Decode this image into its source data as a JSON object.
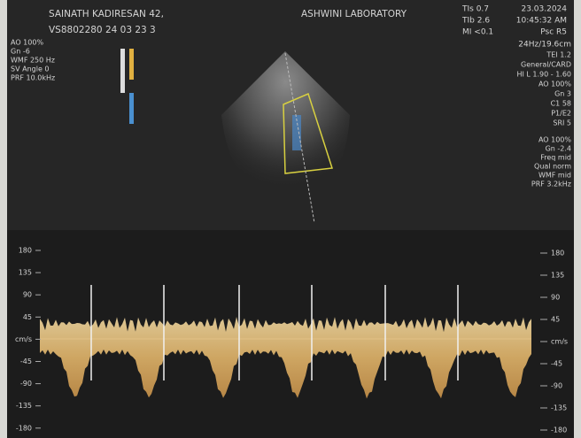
{
  "header": {
    "patient": "SAINATH KADIRESAN 42,",
    "id": "VS8802280 24 03 23 3",
    "lab": "ASHWINI LABORATORY",
    "tis": "TIs 0.7",
    "tib": "TIb 2.6",
    "mi": "MI <0.1",
    "date": "23.03.2024",
    "time": "10:45:32 AM",
    "probe": "Psc R5",
    "frame": "24Hz/19.6cm"
  },
  "left_params": [
    "AO 100%",
    "Gn -6",
    "WMF 250 Hz",
    "SV Angle 0",
    "PRF 10.0kHz"
  ],
  "right_params": [
    "TEI 1.2",
    "General/CARD",
    "HI L 1.90 - 1.60",
    "AO 100%",
    "Gn 3",
    "C1 58",
    "P1/E2",
    "SRI 5"
  ],
  "right_params_2": [
    "AO 100%",
    "Gn -2.4",
    "Freq mid",
    "Qual norm",
    "WMF mid",
    "PRF 3.2kHz"
  ],
  "scale": {
    "left": [
      "180",
      "135",
      "90",
      "45",
      "cm/s",
      "-45",
      "-90",
      "-135",
      "-180"
    ],
    "right": [
      "180",
      "135",
      "90",
      "45",
      "cm/s",
      "-45",
      "-90",
      "-135",
      "-180"
    ]
  }
}
